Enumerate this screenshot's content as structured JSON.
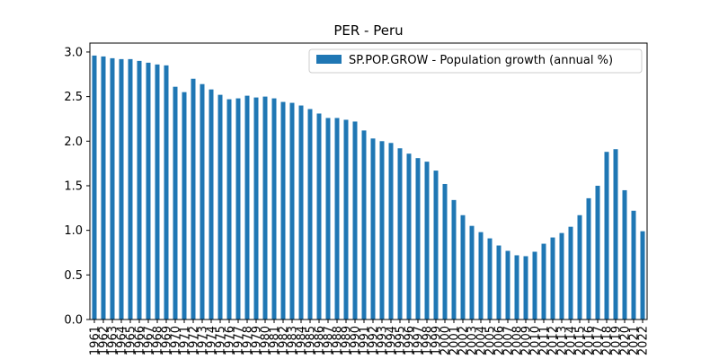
{
  "chart_data": {
    "type": "bar",
    "title": "PER - Peru",
    "xlabel": "",
    "ylabel": "",
    "ylim": [
      0,
      3.1
    ],
    "yticks": [
      0.0,
      0.5,
      1.0,
      1.5,
      2.0,
      2.5,
      3.0
    ],
    "ytick_labels": [
      "0.0",
      "0.5",
      "1.0",
      "1.5",
      "2.0",
      "2.5",
      "3.0"
    ],
    "categories": [
      "1961",
      "1962",
      "1963",
      "1964",
      "1965",
      "1966",
      "1967",
      "1968",
      "1969",
      "1970",
      "1971",
      "1972",
      "1973",
      "1974",
      "1975",
      "1976",
      "1977",
      "1978",
      "1979",
      "1980",
      "1981",
      "1982",
      "1983",
      "1984",
      "1985",
      "1986",
      "1987",
      "1988",
      "1989",
      "1990",
      "1991",
      "1992",
      "1993",
      "1994",
      "1995",
      "1996",
      "1997",
      "1998",
      "1999",
      "2000",
      "2001",
      "2002",
      "2003",
      "2004",
      "2005",
      "2006",
      "2007",
      "2008",
      "2009",
      "2010",
      "2011",
      "2012",
      "2013",
      "2014",
      "2015",
      "2016",
      "2017",
      "2018",
      "2019",
      "2020",
      "2021",
      "2022"
    ],
    "series": [
      {
        "name": "SP.POP.GROW - Population growth (annual %)",
        "color": "#1f77b4",
        "values": [
          2.96,
          2.95,
          2.93,
          2.92,
          2.92,
          2.9,
          2.88,
          2.86,
          2.85,
          2.61,
          2.55,
          2.7,
          2.64,
          2.58,
          2.52,
          2.47,
          2.48,
          2.51,
          2.49,
          2.5,
          2.48,
          2.44,
          2.43,
          2.4,
          2.36,
          2.31,
          2.26,
          2.26,
          2.24,
          2.22,
          2.12,
          2.03,
          2.0,
          1.98,
          1.92,
          1.86,
          1.81,
          1.77,
          1.67,
          1.52,
          1.34,
          1.17,
          1.05,
          0.98,
          0.91,
          0.83,
          0.77,
          0.72,
          0.71,
          0.76,
          0.85,
          0.92,
          0.97,
          1.04,
          1.17,
          1.36,
          1.5,
          1.88,
          1.91,
          1.45,
          1.22,
          0.99
        ]
      }
    ],
    "legend_position": "top-right",
    "grid": false
  }
}
